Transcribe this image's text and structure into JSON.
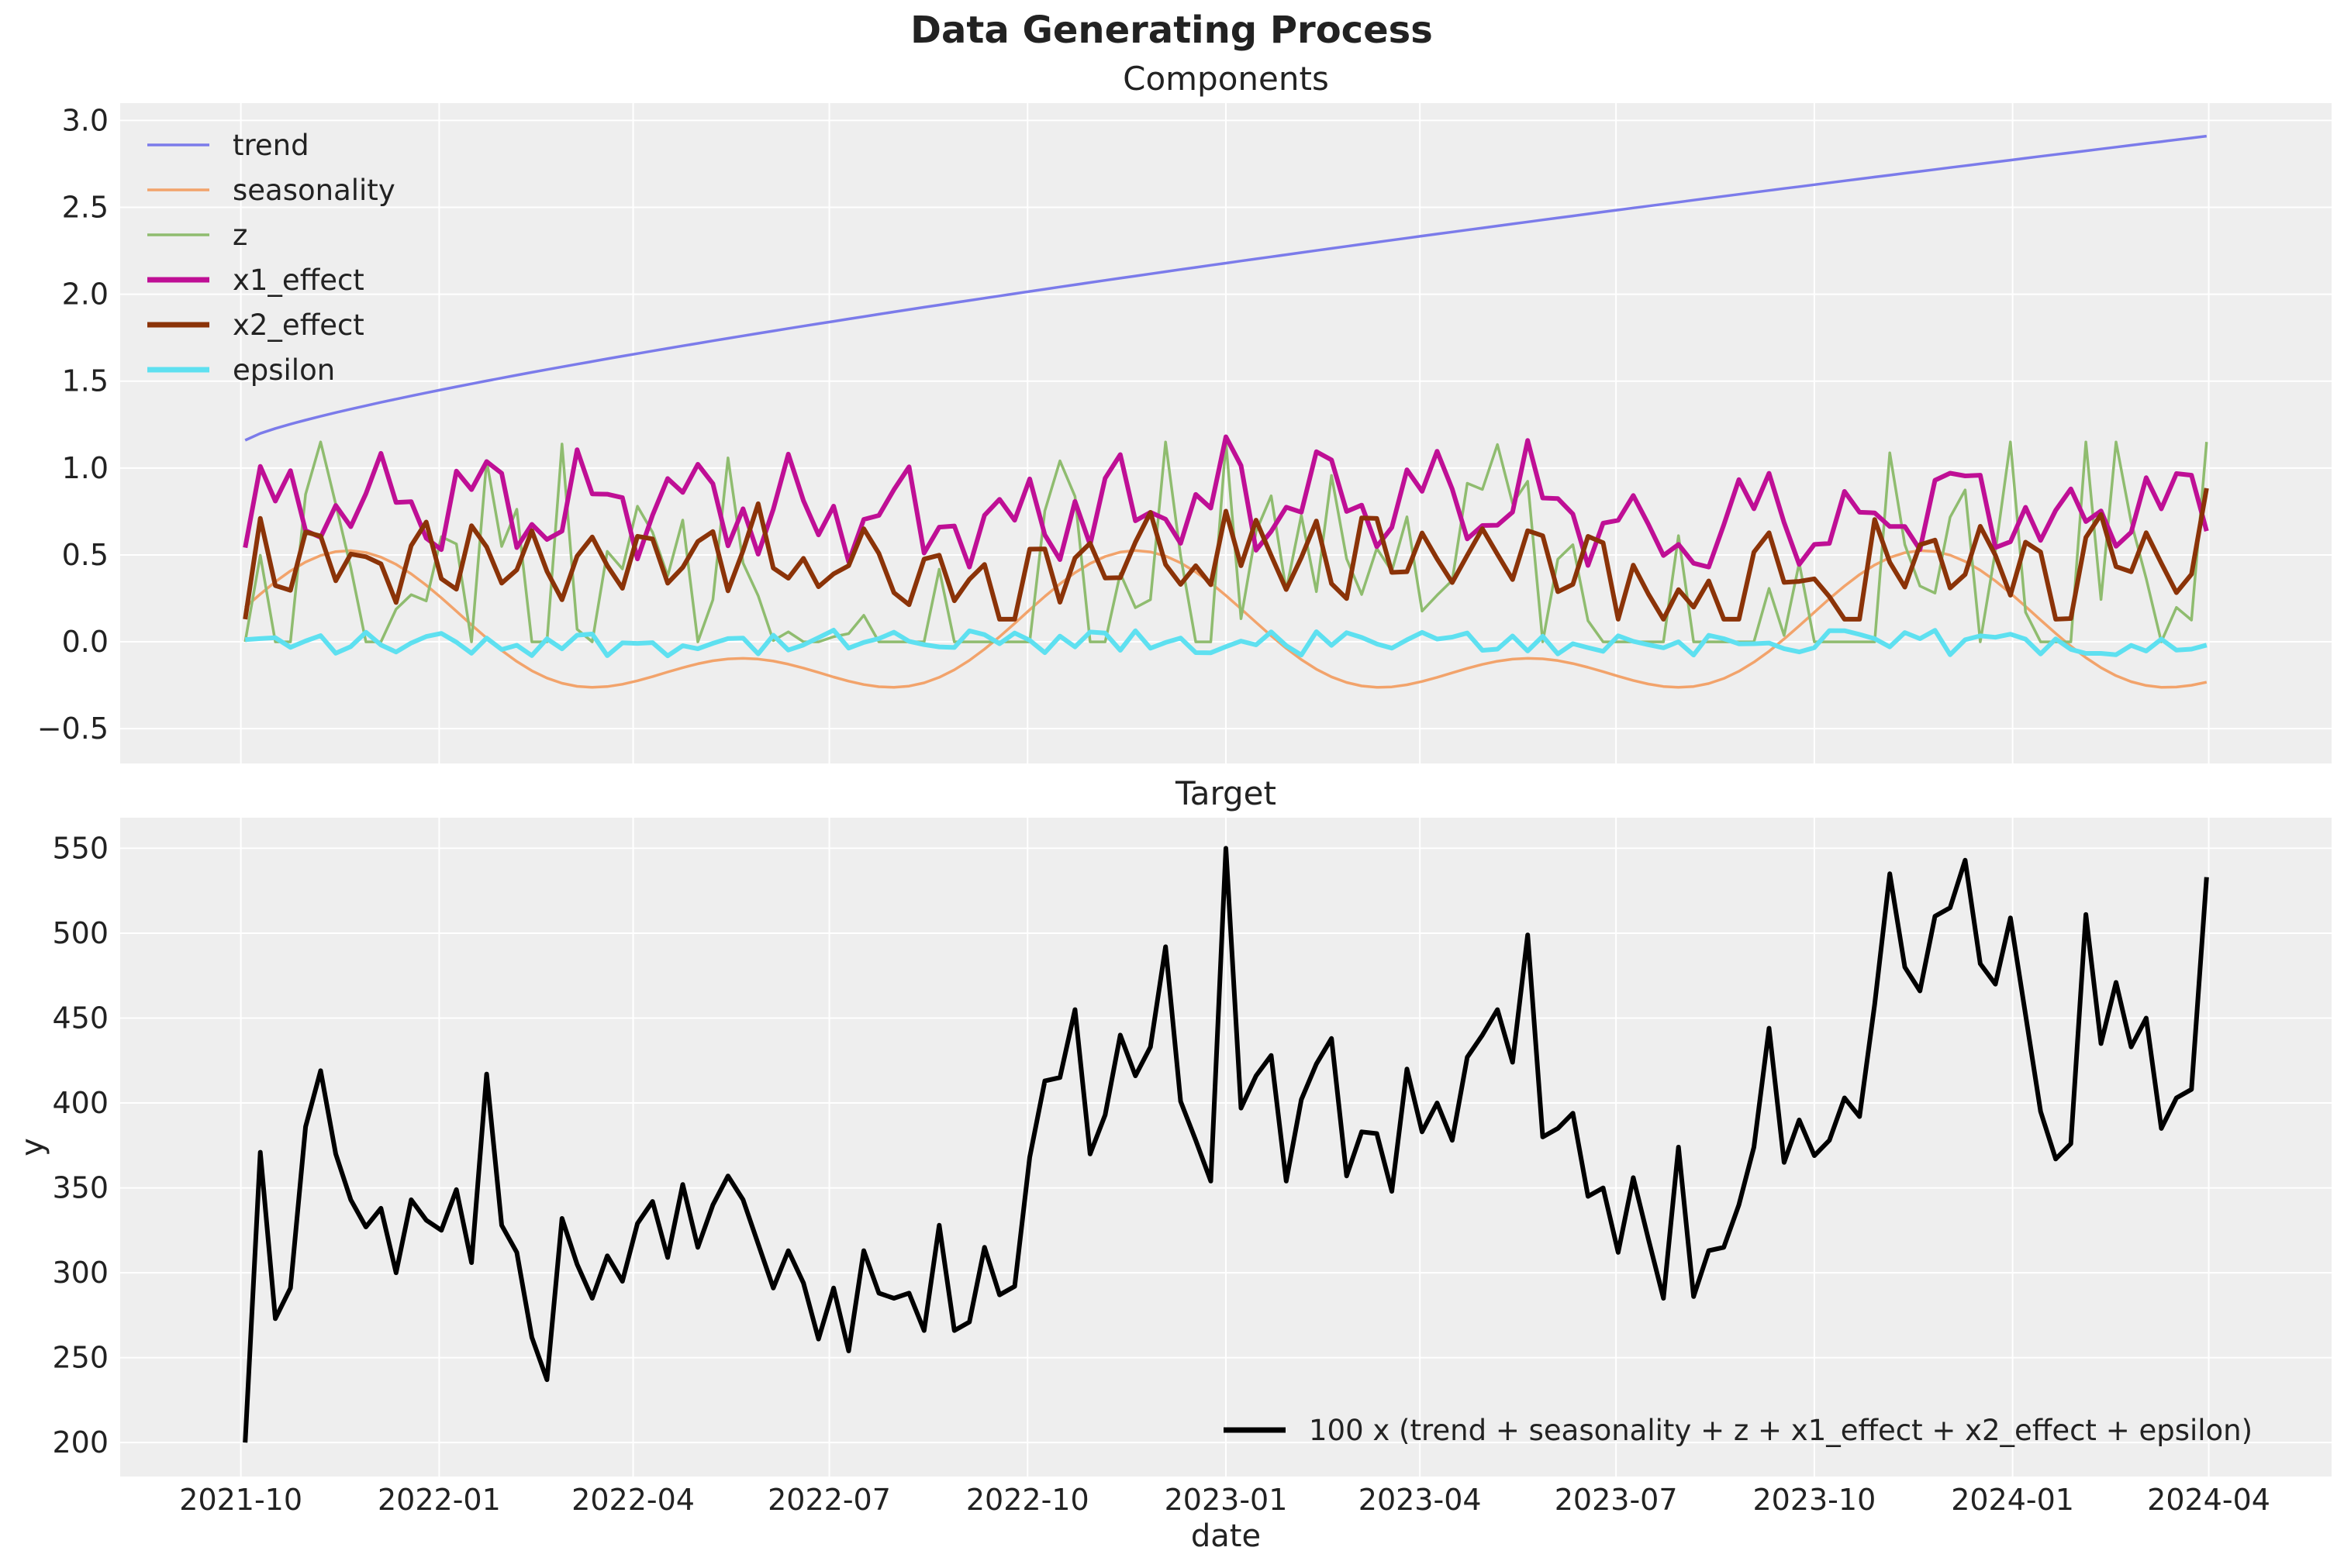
{
  "suptitle": "Data Generating Process",
  "chart_data": [
    {
      "type": "line",
      "title": "Components",
      "xlabel": "",
      "ylabel": "",
      "ylim": [
        -0.7,
        3.1
      ],
      "yticks": [
        -0.5,
        0.0,
        0.5,
        1.0,
        1.5,
        2.0,
        2.5,
        3.0
      ],
      "ytick_labels": [
        "−0.5",
        "0.0",
        "0.5",
        "1.0",
        "1.5",
        "2.0",
        "2.5",
        "3.0"
      ],
      "grid": true,
      "legend_position": "upper-left",
      "x_start": "2021-10-03",
      "x_step_days": 7,
      "series": [
        {
          "name": "trend",
          "color": "#7b7bea",
          "width": "thin",
          "formula_samples": "generated",
          "values": []
        },
        {
          "name": "seasonality",
          "color": "#f2a36b",
          "width": "thin",
          "values": []
        },
        {
          "name": "z",
          "color": "#8fbc6f",
          "width": "thin",
          "values": []
        },
        {
          "name": "x1_effect",
          "color": "#bf0f95",
          "width": "thick",
          "values": []
        },
        {
          "name": "x2_effect",
          "color": "#8b3308",
          "width": "thick",
          "values": []
        },
        {
          "name": "epsilon",
          "color": "#5ee0f0",
          "width": "thick",
          "values": []
        }
      ]
    },
    {
      "type": "line",
      "title": "Target",
      "xlabel": "date",
      "ylabel": "y",
      "ylim": [
        180,
        568
      ],
      "yticks": [
        200,
        250,
        300,
        350,
        400,
        450,
        500,
        550
      ],
      "ytick_labels": [
        "200",
        "250",
        "300",
        "350",
        "400",
        "450",
        "500",
        "550"
      ],
      "xticks": [
        "2021-10",
        "2022-01",
        "2022-04",
        "2022-07",
        "2022-10",
        "2023-01",
        "2023-04",
        "2023-07",
        "2023-10",
        "2024-01",
        "2024-04"
      ],
      "grid": true,
      "legend_position": "lower-right",
      "series": [
        {
          "name": "100 x (trend + seasonality + z + x1_effect + x2_effect + epsilon)",
          "color": "#000000",
          "values": [
            200,
            371,
            273,
            291,
            386,
            419,
            370,
            343,
            327,
            338,
            300,
            343,
            331,
            325,
            349,
            306,
            417,
            328,
            312,
            262,
            237,
            332,
            305,
            285,
            310,
            295,
            329,
            342,
            309,
            352,
            315,
            340,
            357,
            343,
            317,
            291,
            313,
            294,
            261,
            291,
            254,
            313,
            288,
            285,
            288,
            266,
            328,
            266,
            271,
            315,
            287,
            292,
            368,
            413,
            415,
            455,
            370,
            393,
            440,
            416,
            433,
            492,
            401,
            378,
            354,
            550,
            397,
            416,
            428,
            354,
            402,
            423,
            438,
            357,
            383,
            382,
            348,
            420,
            383,
            400,
            378,
            427,
            440,
            455,
            424,
            499,
            380,
            385,
            394,
            345,
            350,
            312,
            356,
            320,
            285,
            374,
            286,
            313,
            315,
            340,
            374,
            444,
            365,
            390,
            369,
            378,
            403,
            392,
            458,
            535,
            480,
            466,
            510,
            515,
            543,
            482,
            470,
            509,
            452,
            395,
            367,
            376,
            511,
            435,
            471,
            433,
            450,
            385,
            403,
            408,
            533
          ]
        }
      ]
    }
  ]
}
